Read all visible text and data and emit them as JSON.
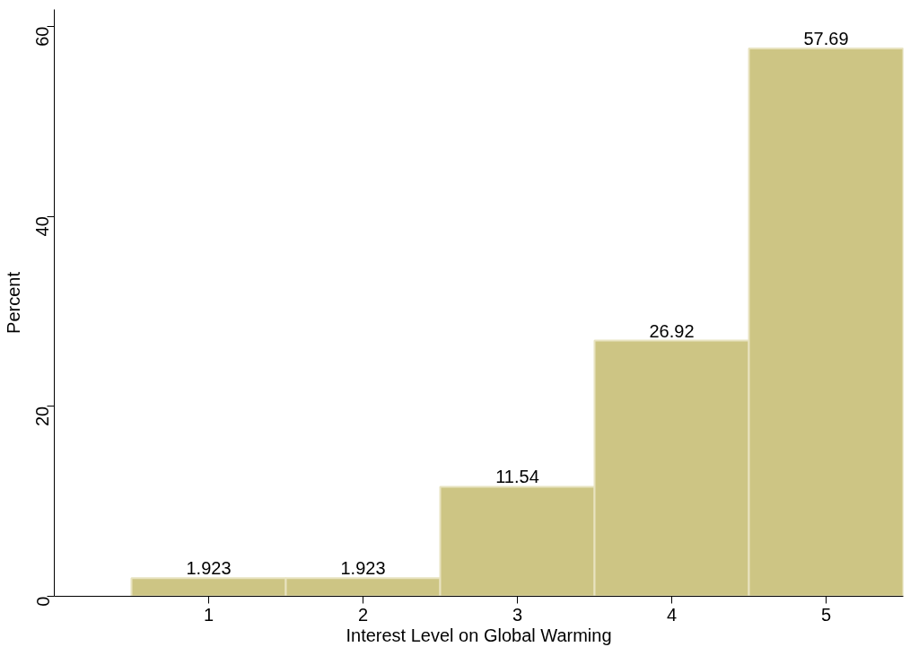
{
  "chart_data": {
    "type": "histogram",
    "xlabel": "Interest Level on Global Warming",
    "ylabel": "Percent",
    "bins": [
      0.5,
      1.5,
      2.5,
      3.5,
      4.5,
      5.5
    ],
    "values": [
      1.923,
      1.923,
      11.54,
      26.92,
      57.69
    ],
    "color": "#cdc584",
    "data_labels": true,
    "xlim": [
      0,
      5.5
    ],
    "xticks": [
      1,
      2,
      3,
      4,
      5
    ],
    "ylim": [
      0,
      61.8
    ],
    "yticks": [
      0,
      20,
      40,
      60
    ],
    "grid": false
  }
}
